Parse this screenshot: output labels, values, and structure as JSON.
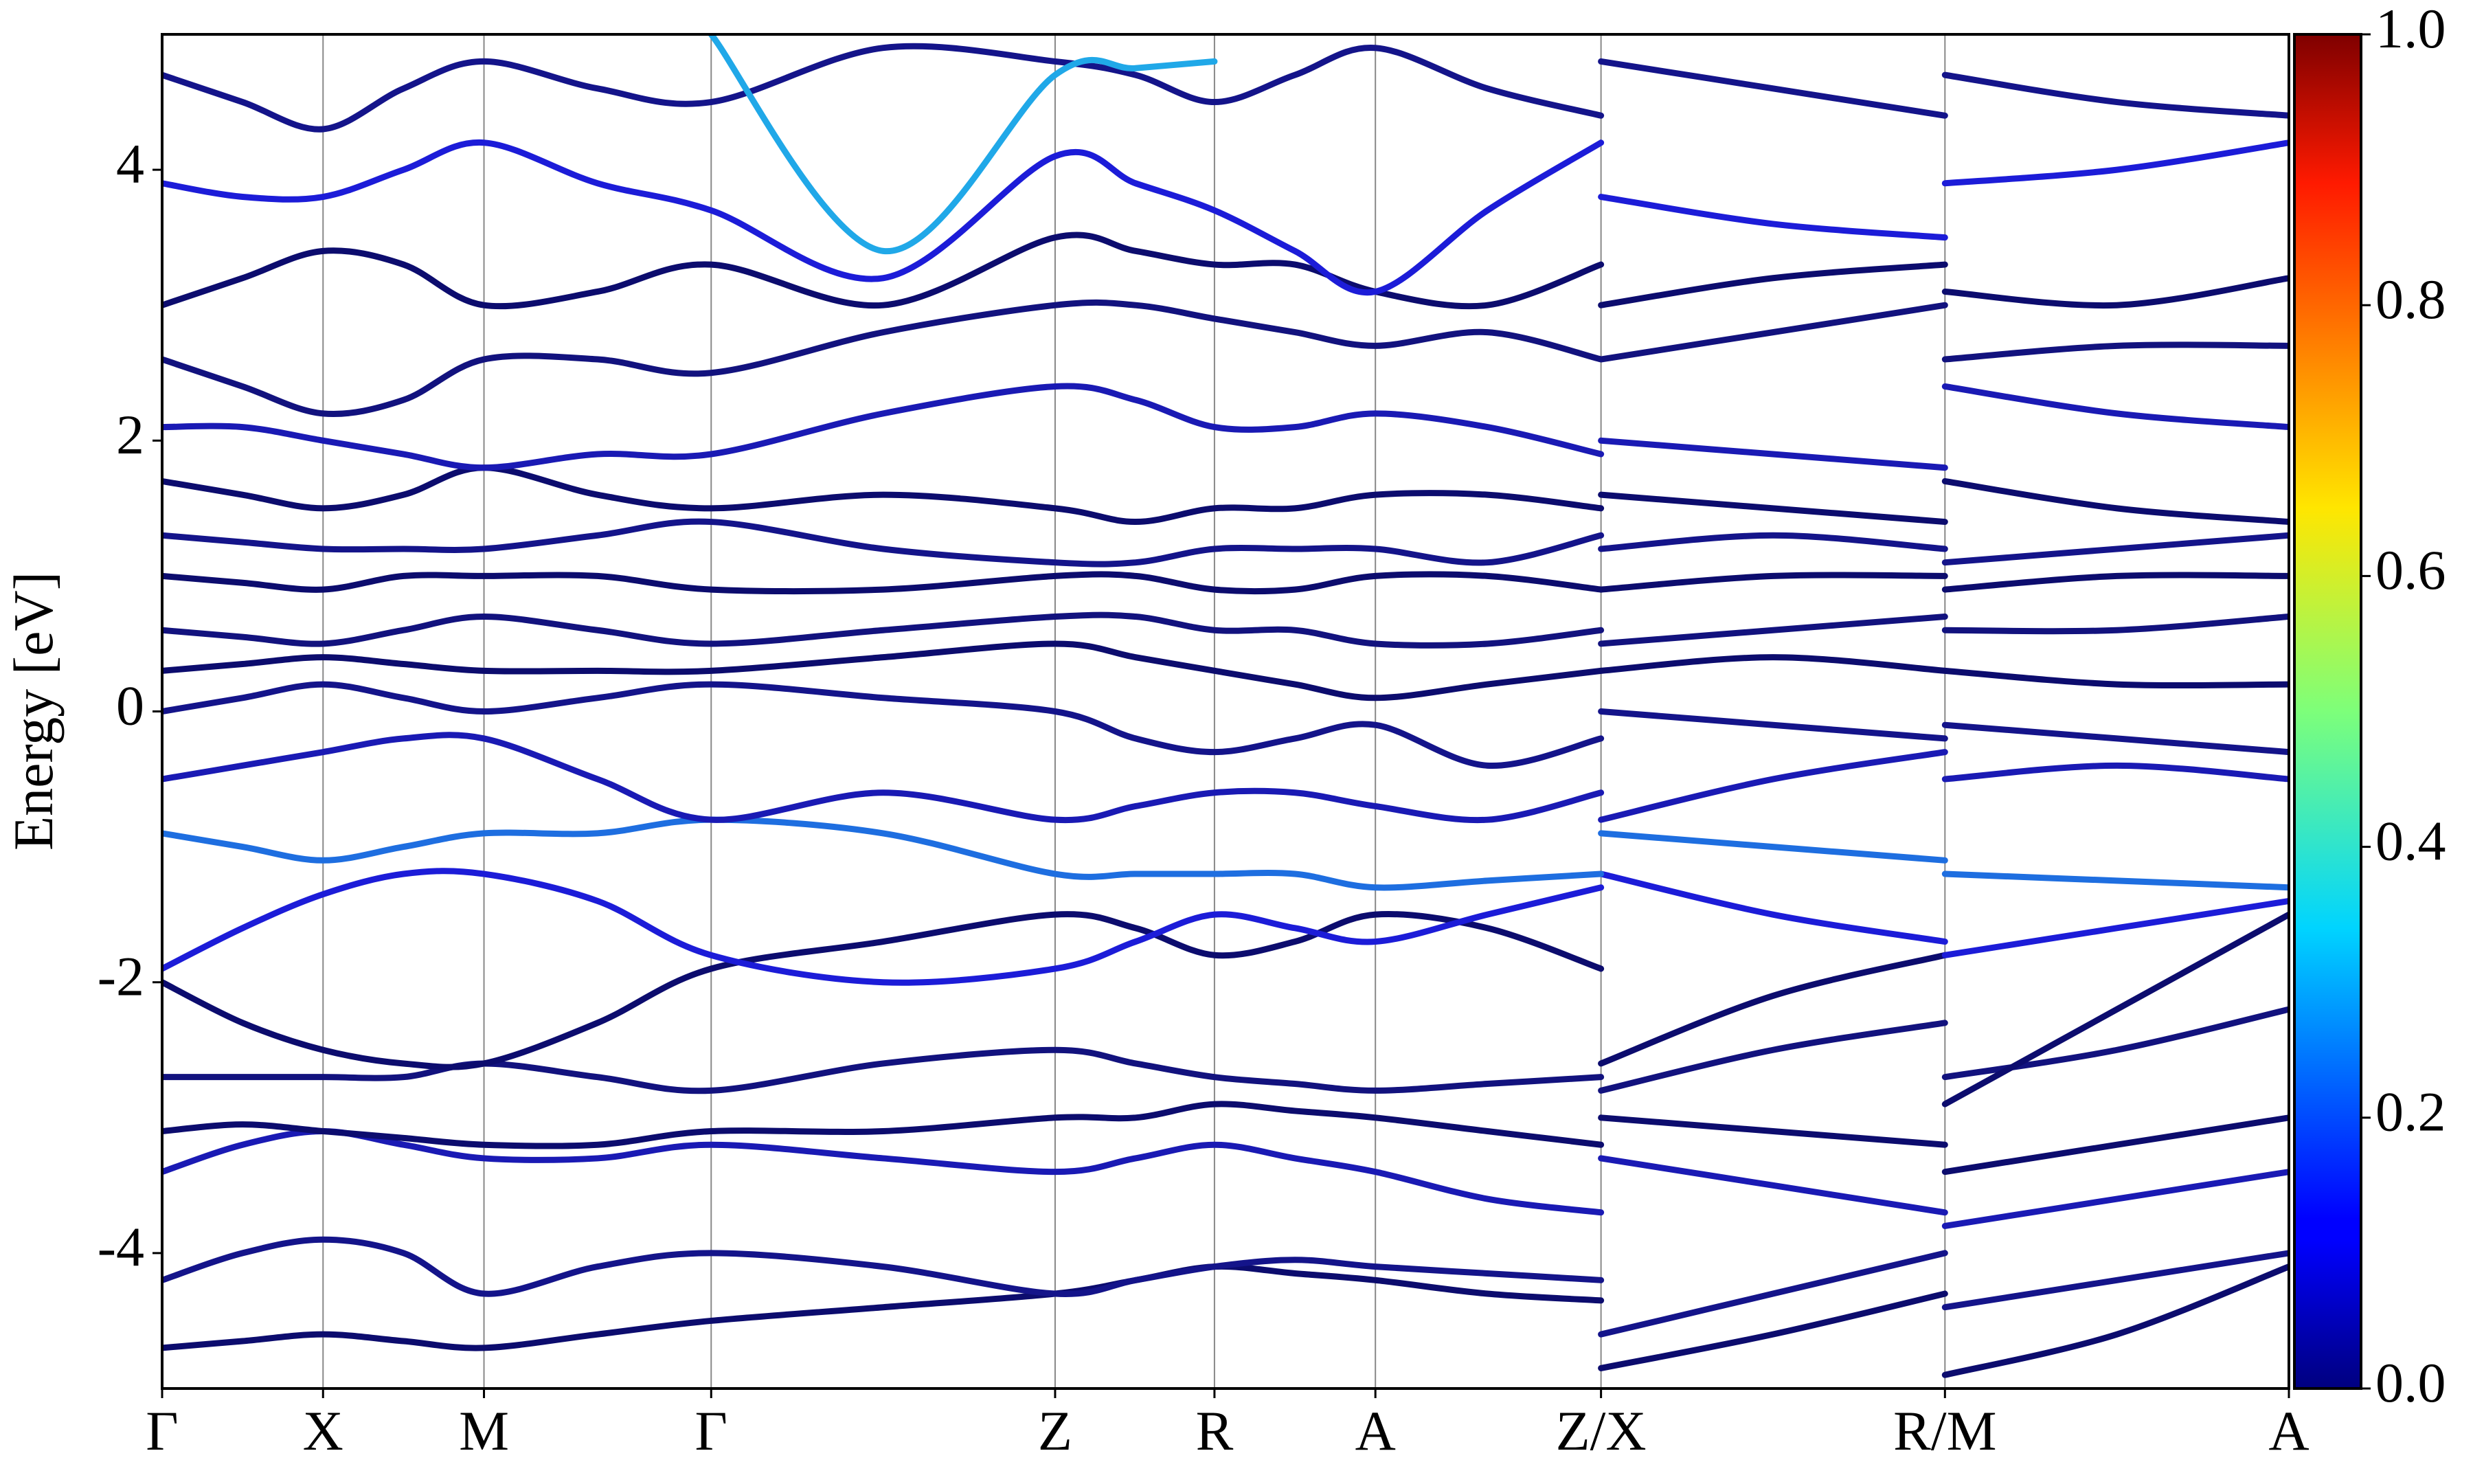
{
  "chart_data": {
    "type": "line",
    "y_label": "Energy [eV]",
    "x": [
      0,
      0.051,
      0.102,
      0.153,
      0.204,
      0.276,
      0.348,
      0.457,
      0.566,
      0.617,
      0.667,
      0.718,
      0.769,
      0.84,
      0.912,
      0.912,
      0.912,
      1.021,
      1.13,
      1.13,
      1.13,
      1.239,
      1.348
    ],
    "xlim": [
      0,
      1.348
    ],
    "xticks": [
      {
        "value": 0,
        "label": "Γ"
      },
      {
        "value": 0.102,
        "label": "X"
      },
      {
        "value": 0.204,
        "label": "M"
      },
      {
        "value": 0.348,
        "label": "Γ"
      },
      {
        "value": 0.566,
        "label": "Z"
      },
      {
        "value": 0.667,
        "label": "R"
      },
      {
        "value": 0.769,
        "label": "A"
      },
      {
        "value": 0.912,
        "label": "Z/X"
      },
      {
        "value": 1.13,
        "label": "R/M"
      },
      {
        "value": 1.348,
        "label": "A"
      }
    ],
    "ylim": [
      -5,
      5
    ],
    "yticks": [
      -4,
      -2,
      0,
      2,
      4
    ],
    "series": [
      {
        "color": "#0c0c6e",
        "values": [
          -4.7,
          -4.65,
          -4.6,
          -4.65,
          -4.7,
          -4.6,
          -4.5,
          -4.4,
          -4.3,
          -4.2,
          -4.1,
          -4.15,
          -4.2,
          -4.3,
          -4.35,
          null,
          -4.85,
          -4.6,
          -4.3,
          null,
          -4.9,
          -4.6,
          -4.1
        ]
      },
      {
        "color": "#14148a",
        "values": [
          -4.2,
          -4.0,
          -3.9,
          -4.0,
          -4.3,
          -4.1,
          -4.0,
          -4.1,
          -4.3,
          -4.2,
          -4.1,
          -4.05,
          -4.1,
          -4.15,
          -4.2,
          null,
          -4.6,
          -4.3,
          -4.0,
          null,
          -4.4,
          -4.2,
          -4.0
        ]
      },
      {
        "color": "#1a1ab4",
        "values": [
          -3.4,
          -3.2,
          -3.1,
          -3.2,
          -3.3,
          -3.3,
          -3.2,
          -3.3,
          -3.4,
          -3.3,
          -3.2,
          -3.3,
          -3.4,
          -3.6,
          -3.7,
          null,
          -3.3,
          -3.5,
          -3.7,
          null,
          -3.8,
          -3.6,
          -3.4
        ]
      },
      {
        "color": "#0c0c6e",
        "values": [
          -3.1,
          -3.05,
          -3.1,
          -3.15,
          -3.2,
          -3.2,
          -3.1,
          -3.1,
          -3.0,
          -3.0,
          -2.9,
          -2.95,
          -3.0,
          -3.1,
          -3.2,
          null,
          -3.0,
          -3.1,
          -3.2,
          null,
          -3.4,
          -3.2,
          -3.0
        ]
      },
      {
        "color": "#12127e",
        "values": [
          -2.7,
          -2.7,
          -2.7,
          -2.7,
          -2.6,
          -2.7,
          -2.8,
          -2.6,
          -2.5,
          -2.6,
          -2.7,
          -2.75,
          -2.8,
          -2.75,
          -2.7,
          null,
          -2.8,
          -2.5,
          -2.3,
          null,
          -2.7,
          -2.5,
          -2.2
        ]
      },
      {
        "color": "#0c0c6e",
        "values": [
          -2.0,
          -2.3,
          -2.5,
          -2.6,
          -2.6,
          -2.3,
          -1.9,
          -1.7,
          -1.5,
          -1.6,
          -1.8,
          -1.7,
          -1.5,
          -1.6,
          -1.9,
          null,
          -2.6,
          -2.1,
          -1.8,
          null,
          -2.9,
          -2.2,
          -1.5
        ]
      },
      {
        "color": "#1c1cd8",
        "values": [
          -1.9,
          -1.6,
          -1.35,
          -1.2,
          -1.2,
          -1.4,
          -1.8,
          -2.0,
          -1.9,
          -1.7,
          -1.5,
          -1.6,
          -1.7,
          -1.5,
          -1.3,
          null,
          -1.2,
          -1.5,
          -1.7,
          null,
          -1.8,
          -1.6,
          -1.4
        ]
      },
      {
        "color": "#1e6ee0",
        "values": [
          -0.9,
          -1.0,
          -1.1,
          -1.0,
          -0.9,
          -0.9,
          -0.8,
          -0.9,
          -1.2,
          -1.2,
          -1.2,
          -1.2,
          -1.3,
          -1.25,
          -1.2,
          null,
          -0.9,
          -1.0,
          -1.1,
          null,
          -1.2,
          -1.25,
          -1.3
        ]
      },
      {
        "color": "#1a1ab4",
        "values": [
          -0.5,
          -0.4,
          -0.3,
          -0.2,
          -0.2,
          -0.5,
          -0.8,
          -0.6,
          -0.8,
          -0.7,
          -0.6,
          -0.6,
          -0.7,
          -0.8,
          -0.6,
          null,
          -0.8,
          -0.5,
          -0.3,
          null,
          -0.5,
          -0.4,
          -0.5
        ]
      },
      {
        "color": "#14148a",
        "values": [
          0.0,
          0.1,
          0.2,
          0.1,
          0.0,
          0.1,
          0.2,
          0.1,
          0.0,
          -0.2,
          -0.3,
          -0.2,
          -0.1,
          -0.4,
          -0.2,
          null,
          0.0,
          -0.1,
          -0.2,
          null,
          -0.1,
          -0.2,
          -0.3
        ]
      },
      {
        "color": "#0c0c6e",
        "values": [
          0.3,
          0.35,
          0.4,
          0.35,
          0.3,
          0.3,
          0.3,
          0.4,
          0.5,
          0.4,
          0.3,
          0.2,
          0.1,
          0.2,
          0.3,
          null,
          0.3,
          0.4,
          0.3,
          null,
          0.3,
          0.2,
          0.2
        ]
      },
      {
        "color": "#12127e",
        "values": [
          0.6,
          0.55,
          0.5,
          0.6,
          0.7,
          0.6,
          0.5,
          0.6,
          0.7,
          0.7,
          0.6,
          0.6,
          0.5,
          0.5,
          0.6,
          null,
          0.5,
          0.6,
          0.7,
          null,
          0.6,
          0.6,
          0.7
        ]
      },
      {
        "color": "#0c0c6e",
        "values": [
          1.0,
          0.95,
          0.9,
          1.0,
          1.0,
          1.0,
          0.9,
          0.9,
          1.0,
          1.0,
          0.9,
          0.9,
          1.0,
          1.0,
          0.9,
          null,
          0.9,
          1.0,
          1.0,
          null,
          0.9,
          1.0,
          1.0
        ]
      },
      {
        "color": "#14148a",
        "values": [
          1.3,
          1.25,
          1.2,
          1.2,
          1.2,
          1.3,
          1.4,
          1.2,
          1.1,
          1.1,
          1.2,
          1.2,
          1.2,
          1.1,
          1.3,
          null,
          1.2,
          1.3,
          1.2,
          null,
          1.1,
          1.2,
          1.3
        ]
      },
      {
        "color": "#0c0c6e",
        "values": [
          1.7,
          1.6,
          1.5,
          1.6,
          1.8,
          1.6,
          1.5,
          1.6,
          1.5,
          1.4,
          1.5,
          1.5,
          1.6,
          1.6,
          1.5,
          null,
          1.6,
          1.5,
          1.4,
          null,
          1.7,
          1.5,
          1.4
        ]
      },
      {
        "color": "#1a1ab4",
        "values": [
          2.1,
          2.1,
          2.0,
          1.9,
          1.8,
          1.9,
          1.9,
          2.2,
          2.4,
          2.3,
          2.1,
          2.1,
          2.2,
          2.1,
          1.9,
          null,
          2.0,
          1.9,
          1.8,
          null,
          2.4,
          2.2,
          2.1
        ]
      },
      {
        "color": "#12127e",
        "values": [
          2.6,
          2.4,
          2.2,
          2.3,
          2.6,
          2.6,
          2.5,
          2.8,
          3.0,
          3.0,
          2.9,
          2.8,
          2.7,
          2.8,
          2.6,
          null,
          2.6,
          2.8,
          3.0,
          null,
          2.6,
          2.7,
          2.7
        ]
      },
      {
        "color": "#0c0c6e",
        "values": [
          3.0,
          3.2,
          3.4,
          3.3,
          3.0,
          3.1,
          3.3,
          3.0,
          3.5,
          3.4,
          3.3,
          3.3,
          3.1,
          3.0,
          3.3,
          null,
          3.0,
          3.2,
          3.3,
          null,
          3.1,
          3.0,
          3.2
        ]
      },
      {
        "color": "#1c1cd8",
        "values": [
          3.9,
          3.8,
          3.8,
          4.0,
          4.2,
          3.9,
          3.7,
          3.2,
          4.1,
          3.9,
          3.7,
          3.4,
          3.1,
          3.7,
          4.2,
          null,
          3.8,
          3.6,
          3.5,
          null,
          3.9,
          4.0,
          4.2
        ]
      },
      {
        "color": "#14148a",
        "values": [
          4.7,
          4.5,
          4.3,
          4.6,
          4.8,
          4.6,
          4.5,
          4.9,
          4.8,
          4.7,
          4.5,
          4.7,
          4.9,
          4.6,
          4.4,
          null,
          4.8,
          4.6,
          4.4,
          null,
          4.7,
          4.5,
          4.4
        ]
      },
      {
        "color": "#20a8e8",
        "values": [
          null,
          null,
          null,
          null,
          null,
          null,
          5.0,
          3.4,
          4.7,
          4.75,
          4.8,
          null,
          null,
          null,
          null,
          null,
          null,
          null,
          null,
          null,
          null,
          null,
          null
        ]
      }
    ],
    "colorbar": {
      "ylim": [
        0,
        1
      ],
      "yticks": [
        {
          "value": 0,
          "label": "0.0"
        },
        {
          "value": 0.2,
          "label": "0.2"
        },
        {
          "value": 0.4,
          "label": "0.4"
        },
        {
          "value": 0.6,
          "label": "0.6"
        },
        {
          "value": 0.8,
          "label": "0.8"
        },
        {
          "value": 1,
          "label": "1.0"
        }
      ]
    }
  }
}
